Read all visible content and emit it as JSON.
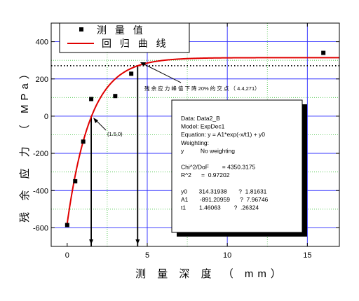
{
  "chart_data": {
    "type": "scatter",
    "xlabel": "测 量 深 度 （ mm）",
    "ylabel": "残 余 应 力 （ MPa）",
    "xlim": [
      -1,
      17
    ],
    "ylim": [
      -700,
      500
    ],
    "xticks": [
      0,
      5,
      10,
      15
    ],
    "yticks": [
      -600,
      -400,
      -200,
      0,
      200,
      400
    ],
    "grid": true,
    "legend": {
      "position": "top-left"
    },
    "series": [
      {
        "name": "测 量 值",
        "kind": "scatter",
        "color": "#000000",
        "x": [
          0.0,
          0.5,
          1.0,
          1.5,
          3.0,
          4.0,
          16.0
        ],
        "y": [
          -585,
          -350,
          -137,
          92,
          108,
          228,
          340
        ]
      },
      {
        "name": "回 归 曲 线",
        "kind": "fit",
        "color": "#e00000",
        "model": {
          "y0": 314.31938,
          "A1": -891.20959,
          "t1": 1.46063
        },
        "x_range": [
          0.0,
          17.0
        ]
      }
    ],
    "reference_line": {
      "y": 271,
      "style": "dotted"
    },
    "vertical_markers": [
      {
        "x": 1.5,
        "from_y": 0,
        "to_y": -700,
        "label": "(1.5,0)"
      },
      {
        "x": 4.4,
        "from_y": 271,
        "to_y": -700
      }
    ],
    "annotation_arrow": {
      "text": "残 余 应 力 峰 值 下 降 20% 的 交 点 （ 4.4,271）",
      "points_to": {
        "x": 4.4,
        "y": 271
      }
    },
    "stats_box": {
      "lines": [
        "Data: Data2_B",
        "Model: ExpDec1",
        "Equation: y = A1*exp(-x/t1) + y0",
        "Weighting:",
        "y          No weighting",
        "",
        "Chi^2/DoF        = 4350.3175",
        "R^2      =  0.97202",
        "",
        "y0       314.31938       ?  1.81631",
        "A1       -891.20959      ?  7.96746",
        "t1        1.46063        ?  .26324"
      ]
    }
  }
}
